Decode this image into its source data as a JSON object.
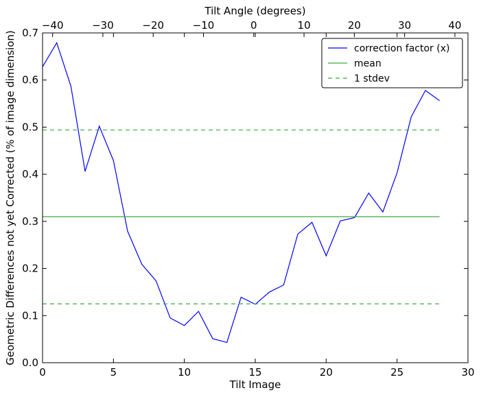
{
  "chart_data": {
    "type": "line",
    "title": "",
    "xlabel": "Tilt Image",
    "ylabel": "Geometric Differences not yet Corrected (% of image dimension)",
    "top_xlabel": "Tilt Angle (degrees)",
    "xlim": [
      0,
      30
    ],
    "ylim": [
      0,
      0.7
    ],
    "top_xlim": [
      -42.0,
      42.6
    ],
    "xticks": [
      0,
      5,
      10,
      15,
      20,
      25,
      30
    ],
    "xtick_labels": [
      "0",
      "5",
      "10",
      "15",
      "20",
      "25",
      "30"
    ],
    "yticks": [
      0.0,
      0.1,
      0.2,
      0.3,
      0.4,
      0.5,
      0.6,
      0.7
    ],
    "ytick_labels": [
      "0.0",
      "0.1",
      "0.2",
      "0.3",
      "0.4",
      "0.5",
      "0.6",
      "0.7"
    ],
    "top_xticks": [
      -40,
      -30,
      -20,
      -10,
      0,
      10,
      20,
      30,
      40
    ],
    "top_xtick_labels": [
      "−40",
      "−30",
      "−20",
      "−10",
      "0",
      "10",
      "20",
      "30",
      "40"
    ],
    "grid": false,
    "legend_position": "top-right",
    "series": [
      {
        "name": "correction factor (x)",
        "style": "solid",
        "color": "#0000ff",
        "x": [
          0,
          1,
          2,
          3,
          4,
          5,
          6,
          7,
          8,
          9,
          10,
          11,
          12,
          13,
          14,
          15,
          16,
          17,
          18,
          19,
          20,
          21,
          22,
          23,
          24,
          25,
          26,
          27,
          28
        ],
        "y": [
          0.628,
          0.679,
          0.587,
          0.406,
          0.502,
          0.429,
          0.279,
          0.209,
          0.174,
          0.095,
          0.079,
          0.109,
          0.051,
          0.043,
          0.139,
          0.124,
          0.15,
          0.165,
          0.273,
          0.298,
          0.227,
          0.301,
          0.308,
          0.36,
          0.32,
          0.403,
          0.522,
          0.578,
          0.556
        ]
      },
      {
        "name": "mean",
        "style": "solid",
        "color": "#3caa3c",
        "x": [
          0,
          28
        ],
        "y": [
          0.31,
          0.31
        ]
      },
      {
        "name": "1 stdev",
        "style": "dashed",
        "color": "#3caa3c",
        "x": [
          0,
          28
        ],
        "y": [
          0.494,
          0.494
        ]
      },
      {
        "name": "",
        "style": "dashed",
        "color": "#3caa3c",
        "x": [
          0,
          28
        ],
        "y": [
          0.125,
          0.125
        ]
      }
    ]
  }
}
